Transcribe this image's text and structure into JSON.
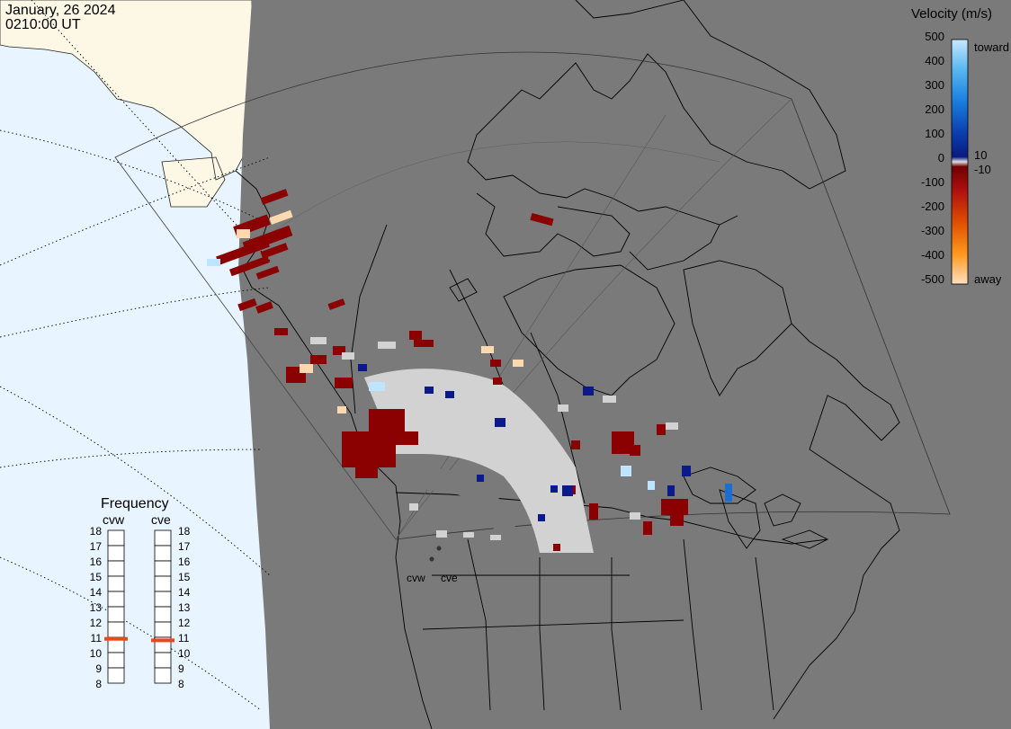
{
  "header": {
    "date": "January, 26 2024",
    "time": "0210:00 UT"
  },
  "colors": {
    "ocean": "#e8f4ff",
    "land_daylight": "#fdf8e6",
    "land_night": "#7a7a7a",
    "ground_scatter": "#d2d2d2",
    "toward_strong": "#bfe4ff",
    "toward_weak": "#0a1a8a",
    "away_weak": "#8b0000",
    "away_strong": "#ffd8b0"
  },
  "legend": {
    "title": "Velocity (m/s)",
    "ticks": [
      "500",
      "400",
      "300",
      "200",
      "100",
      "0",
      "-100",
      "-200",
      "-300",
      "-400",
      "-500"
    ],
    "near_zero_labels": [
      "10",
      "-10"
    ],
    "toward_label": "toward",
    "away_label": "away"
  },
  "frequency": {
    "title": "Frequency",
    "radars": [
      {
        "label": "cvw",
        "mhz": 10.9
      },
      {
        "label": "cve",
        "mhz": 10.8
      }
    ],
    "scale": [
      "18",
      "17",
      "16",
      "15",
      "14",
      "13",
      "12",
      "11",
      "10",
      "9",
      "8"
    ]
  },
  "radar_sites": [
    {
      "label": "cvw"
    },
    {
      "label": "cve"
    }
  ]
}
